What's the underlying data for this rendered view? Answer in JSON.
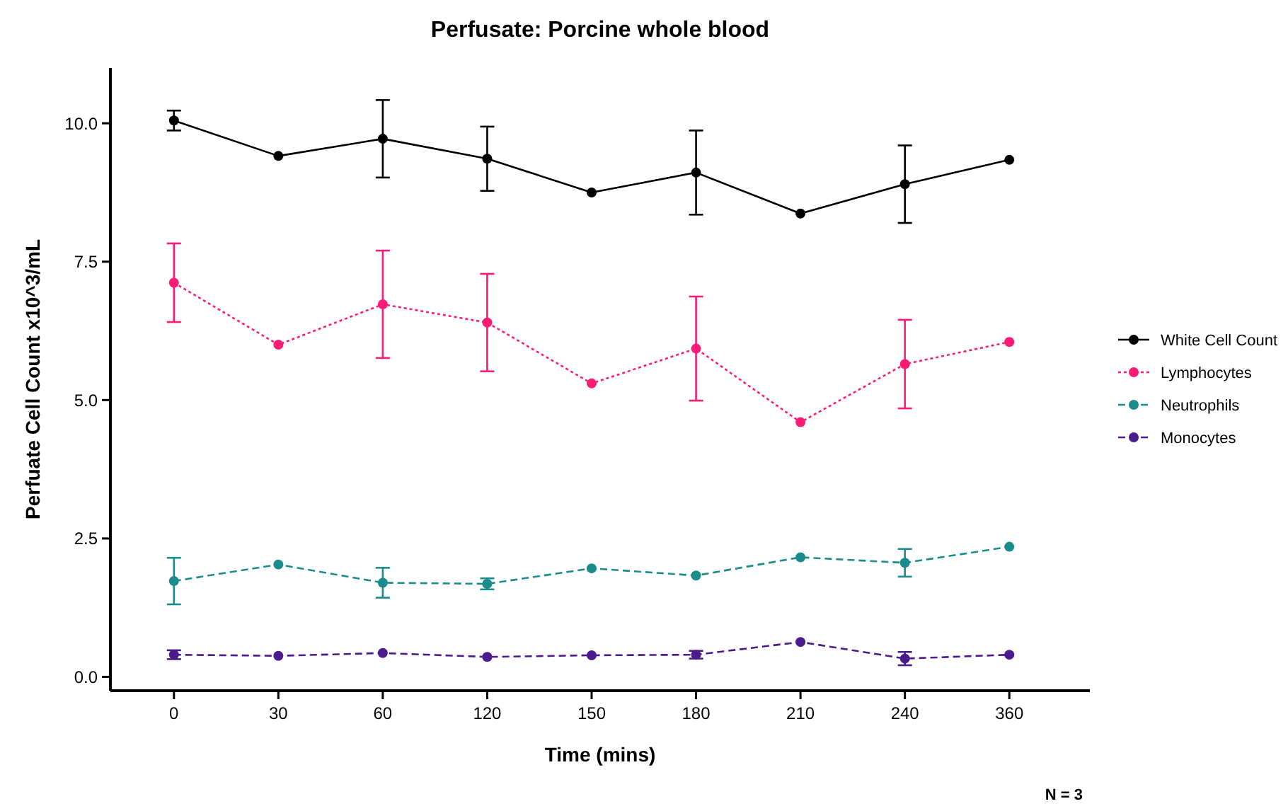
{
  "chart_data": {
    "type": "line",
    "title": "Perfusate: Porcine whole blood",
    "xlabel": "Time (mins)",
    "ylabel": "Perfuate Cell Count x10^3/mL",
    "categories": [
      "0",
      "30",
      "60",
      "120",
      "150",
      "180",
      "210",
      "240",
      "360"
    ],
    "ylim": [
      -0.25,
      11
    ],
    "yticks": [
      {
        "value": 0,
        "label": "0.0"
      },
      {
        "value": 2.5,
        "label": "2.5"
      },
      {
        "value": 5,
        "label": "5.0"
      },
      {
        "value": 7.5,
        "label": "7.5"
      },
      {
        "value": 10,
        "label": "10.0"
      }
    ],
    "grid": false,
    "legend": "right",
    "marker": "circle",
    "annotations": [
      "N = 3"
    ],
    "series": [
      {
        "name": "White Cell Count",
        "color": "#000000",
        "line_style": "solid",
        "values": [
          10.05,
          9.41,
          9.72,
          9.36,
          8.75,
          9.11,
          8.37,
          8.9,
          9.34
        ],
        "errors": [
          0.18,
          null,
          0.7,
          0.58,
          null,
          0.76,
          null,
          0.7,
          null
        ]
      },
      {
        "name": "Lymphocytes",
        "color": "#ff1a75",
        "line_style": "dotted",
        "values": [
          7.12,
          6.0,
          6.73,
          6.4,
          5.3,
          5.93,
          4.6,
          5.65,
          6.05
        ],
        "errors": [
          0.71,
          null,
          0.97,
          0.88,
          null,
          0.94,
          null,
          0.8,
          null
        ]
      },
      {
        "name": "Neutrophils",
        "color": "#1a8c8c",
        "line_style": "dashed",
        "values": [
          1.73,
          2.03,
          1.7,
          1.68,
          1.96,
          1.83,
          2.16,
          2.06,
          2.35
        ],
        "errors": [
          0.42,
          null,
          0.27,
          0.1,
          null,
          null,
          null,
          0.25,
          null
        ]
      },
      {
        "name": "Monocytes",
        "color": "#4b1a8c",
        "line_style": "dashed",
        "values": [
          0.4,
          0.38,
          0.43,
          0.36,
          0.39,
          0.4,
          0.63,
          0.33,
          0.4
        ],
        "errors": [
          0.08,
          null,
          null,
          null,
          null,
          0.07,
          null,
          0.12,
          null
        ]
      }
    ]
  }
}
